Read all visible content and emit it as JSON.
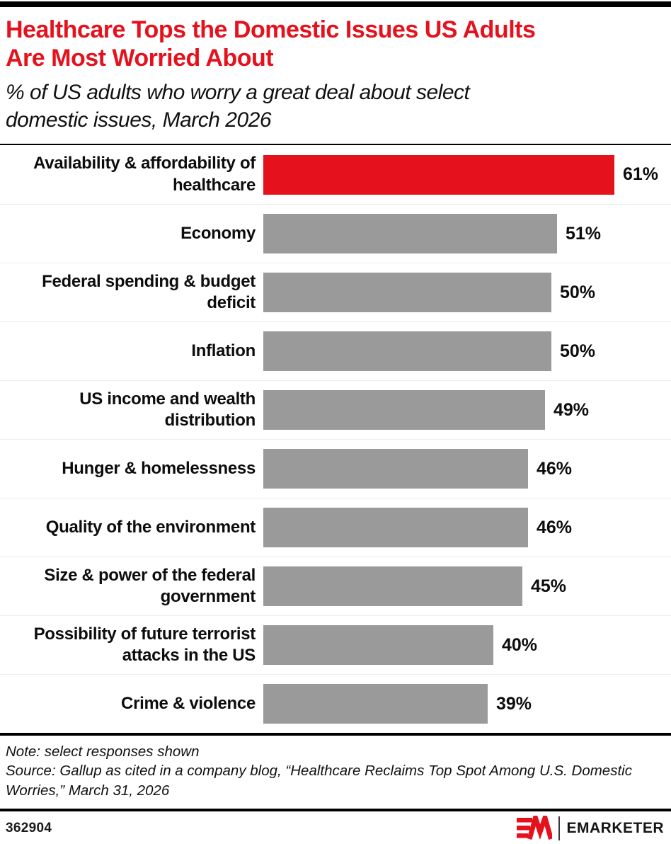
{
  "header": {
    "title": "Healthcare Tops the Domestic Issues US Adults\nAre Most Worried About",
    "subtitle": "% of US adults who worry a great deal about select\ndomestic issues, March 2026"
  },
  "chart_data": {
    "type": "bar",
    "orientation": "horizontal",
    "title": "Healthcare Tops the Domestic Issues US Adults Are Most Worried About",
    "subtitle": "% of US adults who worry a great deal about select domestic issues, March 2026",
    "categories": [
      "Availability & affordability of healthcare",
      "Economy",
      "Federal spending & budget deficit",
      "Inflation",
      "US income and wealth distribution",
      "Hunger & homelessness",
      "Quality of the environment",
      "Size & power of the federal government",
      "Possibility of future terrorist attacks in the US",
      "Crime & violence"
    ],
    "values": [
      61,
      51,
      50,
      50,
      49,
      46,
      46,
      45,
      40,
      39
    ],
    "value_suffix": "%",
    "xlim": [
      0,
      61
    ],
    "grid": false,
    "legend": "none",
    "highlight_index": 0,
    "highlight_color": "#e5121d",
    "default_color": "#9a9a9a"
  },
  "notes": {
    "note": "Note: select responses shown",
    "source": "Source: Gallup as cited in a company blog, “Healthcare Reclaims Top Spot Among U.S. Domestic Worries,” March 31, 2026"
  },
  "footer": {
    "chart_id": "362904",
    "brand_name": "EMARKETER",
    "brand_mark": "EM"
  },
  "colors": {
    "accent_red": "#e5121d",
    "bar_gray": "#9a9a9a",
    "row_divider": "#ececec",
    "rule_black": "#000000"
  }
}
